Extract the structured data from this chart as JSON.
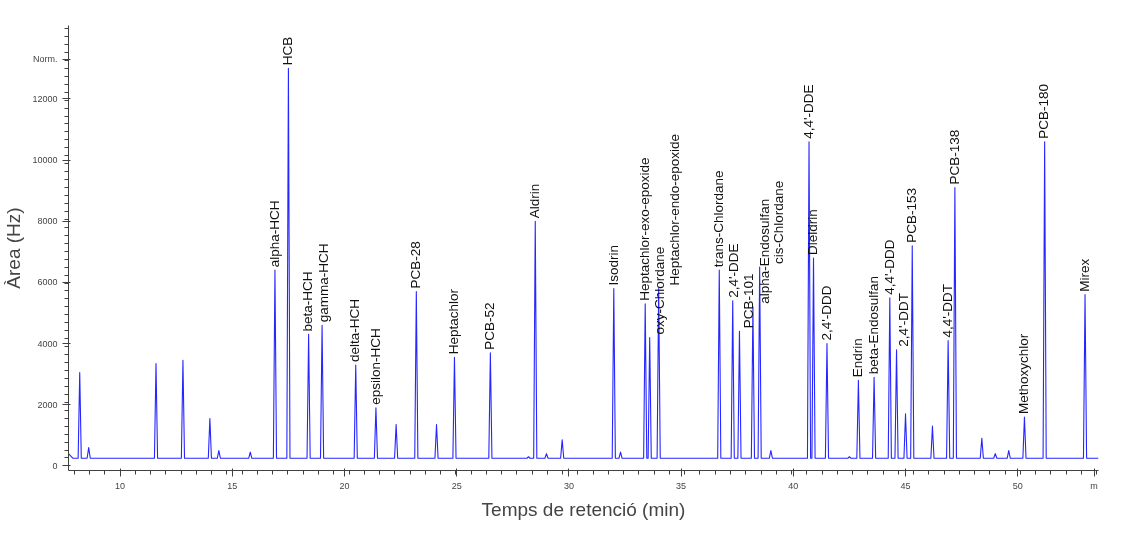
{
  "chart_data": {
    "type": "line",
    "xlabel": "Temps de retenció (min)",
    "ylabel": "Àrea (Hz)",
    "xlim": [
      7.7,
      53.6
    ],
    "ylim": [
      -150,
      14400
    ],
    "xticks": [
      10,
      15,
      20,
      25,
      30,
      35,
      40,
      45,
      50,
      {
        "value": 53.4,
        "label": "m"
      }
    ],
    "yticks": [
      0,
      2000,
      4000,
      6000,
      8000,
      10000,
      12000,
      {
        "value": 13300,
        "label": "Norm."
      }
    ],
    "grid": false,
    "marker": "none",
    "line_style": "solid",
    "series": [
      {
        "color": "#2626ff",
        "x": [
          7.7,
          7.9,
          8.13,
          8.2,
          8.27,
          8.53,
          8.6,
          8.67,
          11.53,
          11.6,
          11.67,
          12.73,
          12.8,
          12.87,
          13.93,
          14.0,
          14.07,
          14.33,
          14.4,
          14.47,
          15.73,
          15.8,
          15.87,
          16.83,
          16.9,
          16.97,
          17.43,
          17.5,
          17.57,
          18.33,
          18.4,
          18.47,
          18.93,
          19.0,
          19.07,
          20.43,
          20.5,
          20.57,
          21.33,
          21.4,
          21.47,
          22.23,
          22.3,
          22.37,
          23.13,
          23.2,
          23.27,
          24.03,
          24.1,
          24.17,
          24.83,
          24.9,
          24.97,
          26.43,
          26.5,
          26.57,
          28.13,
          28.2,
          28.27,
          28.43,
          28.5,
          28.57,
          28.93,
          29.0,
          29.07,
          29.63,
          29.7,
          29.77,
          31.93,
          32.0,
          32.07,
          32.23,
          32.3,
          32.37,
          33.33,
          33.4,
          33.47,
          33.53,
          33.6,
          33.67,
          33.93,
          34.0,
          34.07,
          36.63,
          36.7,
          36.77,
          37.23,
          37.3,
          37.37,
          37.53,
          37.6,
          37.67,
          38.13,
          38.2,
          38.27,
          38.43,
          38.5,
          38.57,
          38.93,
          39.0,
          39.07,
          40.63,
          40.7,
          40.77,
          40.83,
          40.9,
          40.97,
          41.43,
          41.5,
          41.57,
          42.43,
          42.5,
          42.57,
          42.83,
          42.9,
          42.97,
          43.53,
          43.6,
          43.67,
          44.23,
          44.3,
          44.37,
          44.53,
          44.6,
          44.67,
          44.93,
          45.0,
          45.07,
          45.23,
          45.3,
          45.37,
          46.13,
          46.2,
          46.27,
          46.83,
          46.9,
          46.97,
          47.13,
          47.2,
          47.27,
          48.33,
          48.4,
          48.47,
          48.93,
          49.0,
          49.07,
          49.53,
          49.6,
          49.67,
          50.23,
          50.3,
          50.37,
          51.13,
          51.2,
          51.27,
          52.93,
          53.0,
          53.07,
          53.6
        ],
        "values": [
          400,
          250,
          250,
          3050,
          250,
          250,
          600,
          250,
          250,
          3350,
          250,
          250,
          3450,
          250,
          250,
          1550,
          250,
          250,
          500,
          250,
          250,
          450,
          250,
          250,
          6400,
          250,
          250,
          13000,
          250,
          250,
          4300,
          250,
          250,
          4600,
          250,
          250,
          3300,
          250,
          250,
          1900,
          250,
          250,
          1350,
          250,
          250,
          5700,
          250,
          250,
          1350,
          250,
          250,
          3550,
          250,
          250,
          3700,
          250,
          250,
          300,
          250,
          250,
          8000,
          250,
          250,
          400,
          250,
          250,
          850,
          250,
          250,
          5800,
          250,
          250,
          450,
          250,
          250,
          5300,
          250,
          250,
          4200,
          250,
          250,
          5800,
          250,
          250,
          6400,
          250,
          250,
          5400,
          250,
          250,
          4400,
          250,
          250,
          5200,
          250,
          250,
          6500,
          250,
          250,
          500,
          250,
          250,
          10600,
          250,
          250,
          6800,
          250,
          250,
          4000,
          250,
          250,
          300,
          250,
          250,
          2800,
          250,
          250,
          2900,
          250,
          250,
          5500,
          250,
          250,
          3800,
          250,
          250,
          1700,
          250,
          250,
          7200,
          250,
          250,
          1300,
          250,
          250,
          4100,
          250,
          250,
          9100,
          250,
          250,
          900,
          250,
          250,
          400,
          250,
          250,
          500,
          250,
          250,
          1600,
          250,
          250,
          10600,
          250,
          250,
          5600,
          250,
          250
        ]
      }
    ],
    "annotations": [
      {
        "text": "alpha-HCH",
        "x": 16.9,
        "y": 6400
      },
      {
        "text": "HCB",
        "x": 17.5,
        "y": 13000
      },
      {
        "text": "beta-HCH",
        "x": 18.4,
        "y": 4300
      },
      {
        "text": "gamma-HCH",
        "x": 19.0,
        "y": 4600
      },
      {
        "text": "delta-HCH",
        "x": 20.5,
        "y": 3300
      },
      {
        "text": "epsilon-HCH",
        "x": 21.4,
        "y": 1900
      },
      {
        "text": "PCB-28",
        "x": 23.2,
        "y": 5700
      },
      {
        "text": "Heptachlor",
        "x": 24.9,
        "y": 3550
      },
      {
        "text": "PCB-52",
        "x": 26.5,
        "y": 3700
      },
      {
        "text": "Aldrin",
        "x": 28.5,
        "y": 8000
      },
      {
        "text": "Isodrin",
        "x": 32.0,
        "y": 5800
      },
      {
        "text": "Heptachlor-exo-epoxide",
        "x": 33.4,
        "y": 5300
      },
      {
        "text": "oxy-Chlordane",
        "x": 33.6,
        "y": 4200
      },
      {
        "text": "Heptachlor-endo-epoxide",
        "x": 34.0,
        "y": 5800
      },
      {
        "text": "trans-Chlordane",
        "x": 36.7,
        "y": 6400
      },
      {
        "text": "2,4'-DDE",
        "x": 37.3,
        "y": 5400
      },
      {
        "text": "PCB-101",
        "x": 37.6,
        "y": 4400
      },
      {
        "text": "alpha-Endosulfan",
        "x": 38.2,
        "y": 5200
      },
      {
        "text": "cis-Chlordane",
        "x": 38.5,
        "y": 6500
      },
      {
        "text": "4,4'-DDE",
        "x": 40.7,
        "y": 10600
      },
      {
        "text": "Dieldrin",
        "x": 40.9,
        "y": 6800
      },
      {
        "text": "2,4'-DDD",
        "x": 41.5,
        "y": 4000
      },
      {
        "text": "Endrin",
        "x": 42.9,
        "y": 2800
      },
      {
        "text": "beta-Endosulfan",
        "x": 43.6,
        "y": 2900
      },
      {
        "text": "4,4'-DDD",
        "x": 44.3,
        "y": 5500
      },
      {
        "text": "2,4'-DDT",
        "x": 44.6,
        "y": 3800
      },
      {
        "text": "PCB-153",
        "x": 45.3,
        "y": 7200
      },
      {
        "text": "4,4'-DDT",
        "x": 46.9,
        "y": 4100
      },
      {
        "text": "PCB-138",
        "x": 47.2,
        "y": 9100
      },
      {
        "text": "Methoxychlor",
        "x": 50.3,
        "y": 1600
      },
      {
        "text": "PCB-180",
        "x": 51.2,
        "y": 10600
      },
      {
        "text": "Mirex",
        "x": 53.0,
        "y": 5600
      }
    ]
  }
}
